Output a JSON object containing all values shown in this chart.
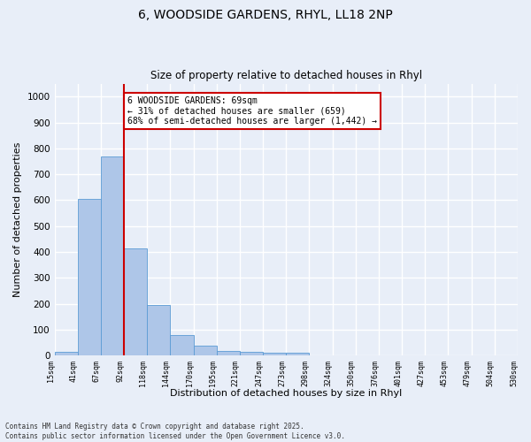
{
  "title_line1": "6, WOODSIDE GARDENS, RHYL, LL18 2NP",
  "title_line2": "Size of property relative to detached houses in Rhyl",
  "xlabel": "Distribution of detached houses by size in Rhyl",
  "ylabel": "Number of detached properties",
  "bar_values": [
    15,
    605,
    770,
    415,
    195,
    78,
    38,
    18,
    15,
    13,
    13,
    0,
    0,
    0,
    0,
    0,
    0,
    0,
    0,
    0
  ],
  "bar_labels": [
    "15sqm",
    "41sqm",
    "67sqm",
    "92sqm",
    "118sqm",
    "144sqm",
    "170sqm",
    "195sqm",
    "221sqm",
    "247sqm",
    "273sqm",
    "298sqm",
    "324sqm",
    "350sqm",
    "376sqm",
    "401sqm",
    "427sqm",
    "453sqm",
    "479sqm",
    "504sqm",
    "530sqm"
  ],
  "bar_color": "#aec6e8",
  "bar_edge_color": "#5b9bd5",
  "vline_x_index": 2,
  "annotation_line1": "6 WOODSIDE GARDENS: 69sqm",
  "annotation_line2": "← 31% of detached houses are smaller (659)",
  "annotation_line3": "68% of semi-detached houses are larger (1,442) →",
  "annotation_box_color": "#ffffff",
  "annotation_box_edge": "#cc0000",
  "vline_color": "#cc0000",
  "ylim": [
    0,
    1050
  ],
  "yticks": [
    0,
    100,
    200,
    300,
    400,
    500,
    600,
    700,
    800,
    900,
    1000
  ],
  "footer_line1": "Contains HM Land Registry data © Crown copyright and database right 2025.",
  "footer_line2": "Contains public sector information licensed under the Open Government Licence v3.0.",
  "bg_color": "#e8eef8",
  "grid_color": "#ffffff"
}
